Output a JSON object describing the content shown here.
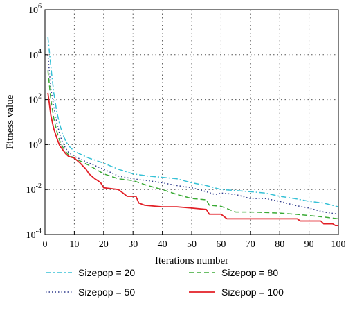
{
  "chart_data": {
    "type": "line",
    "xlabel": "Iterations number",
    "ylabel": "Fitness value",
    "x_range": [
      0,
      100
    ],
    "y_range": [
      0.0001,
      1000000
    ],
    "y_scale": "log",
    "grid": true,
    "legend_placement": "bottom",
    "x_ticks": [
      "0",
      "10",
      "20",
      "30",
      "40",
      "50",
      "60",
      "70",
      "80",
      "90",
      "100"
    ],
    "y_ticks": [
      {
        "base": "10",
        "exp": "6",
        "value": 1000000
      },
      {
        "base": "10",
        "exp": "4",
        "value": 10000
      },
      {
        "base": "10",
        "exp": "2",
        "value": 100
      },
      {
        "base": "10",
        "exp": "0",
        "value": 1
      },
      {
        "base": "10",
        "exp": "-2",
        "value": 0.01
      },
      {
        "base": "10",
        "exp": "-4",
        "value": 0.0001
      }
    ],
    "series": [
      {
        "name": "Sizepop = 20",
        "color": "#36c1d6",
        "dash": "dashdot",
        "points": [
          [
            1,
            60000
          ],
          [
            2,
            3000
          ],
          [
            3,
            200
          ],
          [
            4,
            30
          ],
          [
            5,
            8
          ],
          [
            6,
            3
          ],
          [
            7,
            1.5
          ],
          [
            8,
            0.9
          ],
          [
            10,
            0.5
          ],
          [
            15,
            0.25
          ],
          [
            20,
            0.15
          ],
          [
            25,
            0.08
          ],
          [
            30,
            0.05
          ],
          [
            35,
            0.04
          ],
          [
            40,
            0.035
          ],
          [
            45,
            0.03
          ],
          [
            50,
            0.02
          ],
          [
            55,
            0.015
          ],
          [
            60,
            0.01
          ],
          [
            65,
            0.009
          ],
          [
            70,
            0.008
          ],
          [
            75,
            0.007
          ],
          [
            80,
            0.005
          ],
          [
            85,
            0.004
          ],
          [
            90,
            0.003
          ],
          [
            95,
            0.0025
          ],
          [
            100,
            0.0017
          ]
        ]
      },
      {
        "name": "Sizepop = 50",
        "color": "#2e3a8c",
        "dash": "dotted",
        "points": [
          [
            1,
            10000
          ],
          [
            2,
            300
          ],
          [
            3,
            50
          ],
          [
            4,
            10
          ],
          [
            5,
            3
          ],
          [
            6,
            1.2
          ],
          [
            7,
            0.7
          ],
          [
            8,
            0.45
          ],
          [
            10,
            0.3
          ],
          [
            15,
            0.15
          ],
          [
            20,
            0.08
          ],
          [
            25,
            0.04
          ],
          [
            30,
            0.03
          ],
          [
            35,
            0.025
          ],
          [
            40,
            0.02
          ],
          [
            45,
            0.015
          ],
          [
            50,
            0.012
          ],
          [
            55,
            0.008
          ],
          [
            58,
            0.006
          ],
          [
            60,
            0.007
          ],
          [
            65,
            0.006
          ],
          [
            70,
            0.004
          ],
          [
            75,
            0.004
          ],
          [
            80,
            0.003
          ],
          [
            85,
            0.002
          ],
          [
            90,
            0.0015
          ],
          [
            95,
            0.001
          ],
          [
            100,
            0.0008
          ]
        ]
      },
      {
        "name": "Sizepop = 80",
        "color": "#3aaa35",
        "dash": "dashed",
        "points": [
          [
            1,
            2000
          ],
          [
            2,
            100
          ],
          [
            3,
            15
          ],
          [
            4,
            4
          ],
          [
            5,
            1.5
          ],
          [
            6,
            0.8
          ],
          [
            7,
            0.5
          ],
          [
            8,
            0.35
          ],
          [
            10,
            0.25
          ],
          [
            15,
            0.12
          ],
          [
            20,
            0.05
          ],
          [
            25,
            0.03
          ],
          [
            30,
            0.025
          ],
          [
            35,
            0.015
          ],
          [
            40,
            0.01
          ],
          [
            45,
            0.006
          ],
          [
            50,
            0.004
          ],
          [
            55,
            0.0035
          ],
          [
            56,
            0.002
          ],
          [
            60,
            0.0018
          ],
          [
            65,
            0.001
          ],
          [
            70,
            0.001
          ],
          [
            80,
            0.0009
          ],
          [
            85,
            0.0008
          ],
          [
            90,
            0.0007
          ],
          [
            95,
            0.0006
          ],
          [
            100,
            0.0005
          ]
        ]
      },
      {
        "name": "Sizepop = 100",
        "color": "#e21f26",
        "dash": "solid",
        "points": [
          [
            1,
            200
          ],
          [
            2,
            20
          ],
          [
            3,
            5
          ],
          [
            4,
            2
          ],
          [
            5,
            0.9
          ],
          [
            6,
            0.6
          ],
          [
            7,
            0.4
          ],
          [
            8,
            0.3
          ],
          [
            10,
            0.25
          ],
          [
            12,
            0.15
          ],
          [
            14,
            0.08
          ],
          [
            15,
            0.05
          ],
          [
            17,
            0.03
          ],
          [
            18,
            0.025
          ],
          [
            19,
            0.02
          ],
          [
            20,
            0.012
          ],
          [
            25,
            0.01
          ],
          [
            26,
            0.008
          ],
          [
            28,
            0.005
          ],
          [
            31,
            0.005
          ],
          [
            32,
            0.0025
          ],
          [
            34,
            0.002
          ],
          [
            40,
            0.0017
          ],
          [
            45,
            0.0017
          ],
          [
            50,
            0.0015
          ],
          [
            55,
            0.0013
          ],
          [
            56,
            0.0008
          ],
          [
            60,
            0.0008
          ],
          [
            62,
            0.0005
          ],
          [
            70,
            0.0005
          ],
          [
            86,
            0.0005
          ],
          [
            87,
            0.0004
          ],
          [
            90,
            0.0004
          ],
          [
            94,
            0.0004
          ],
          [
            95,
            0.0003
          ],
          [
            98,
            0.0003
          ],
          [
            99,
            0.00025
          ],
          [
            100,
            0.00025
          ]
        ]
      }
    ]
  }
}
